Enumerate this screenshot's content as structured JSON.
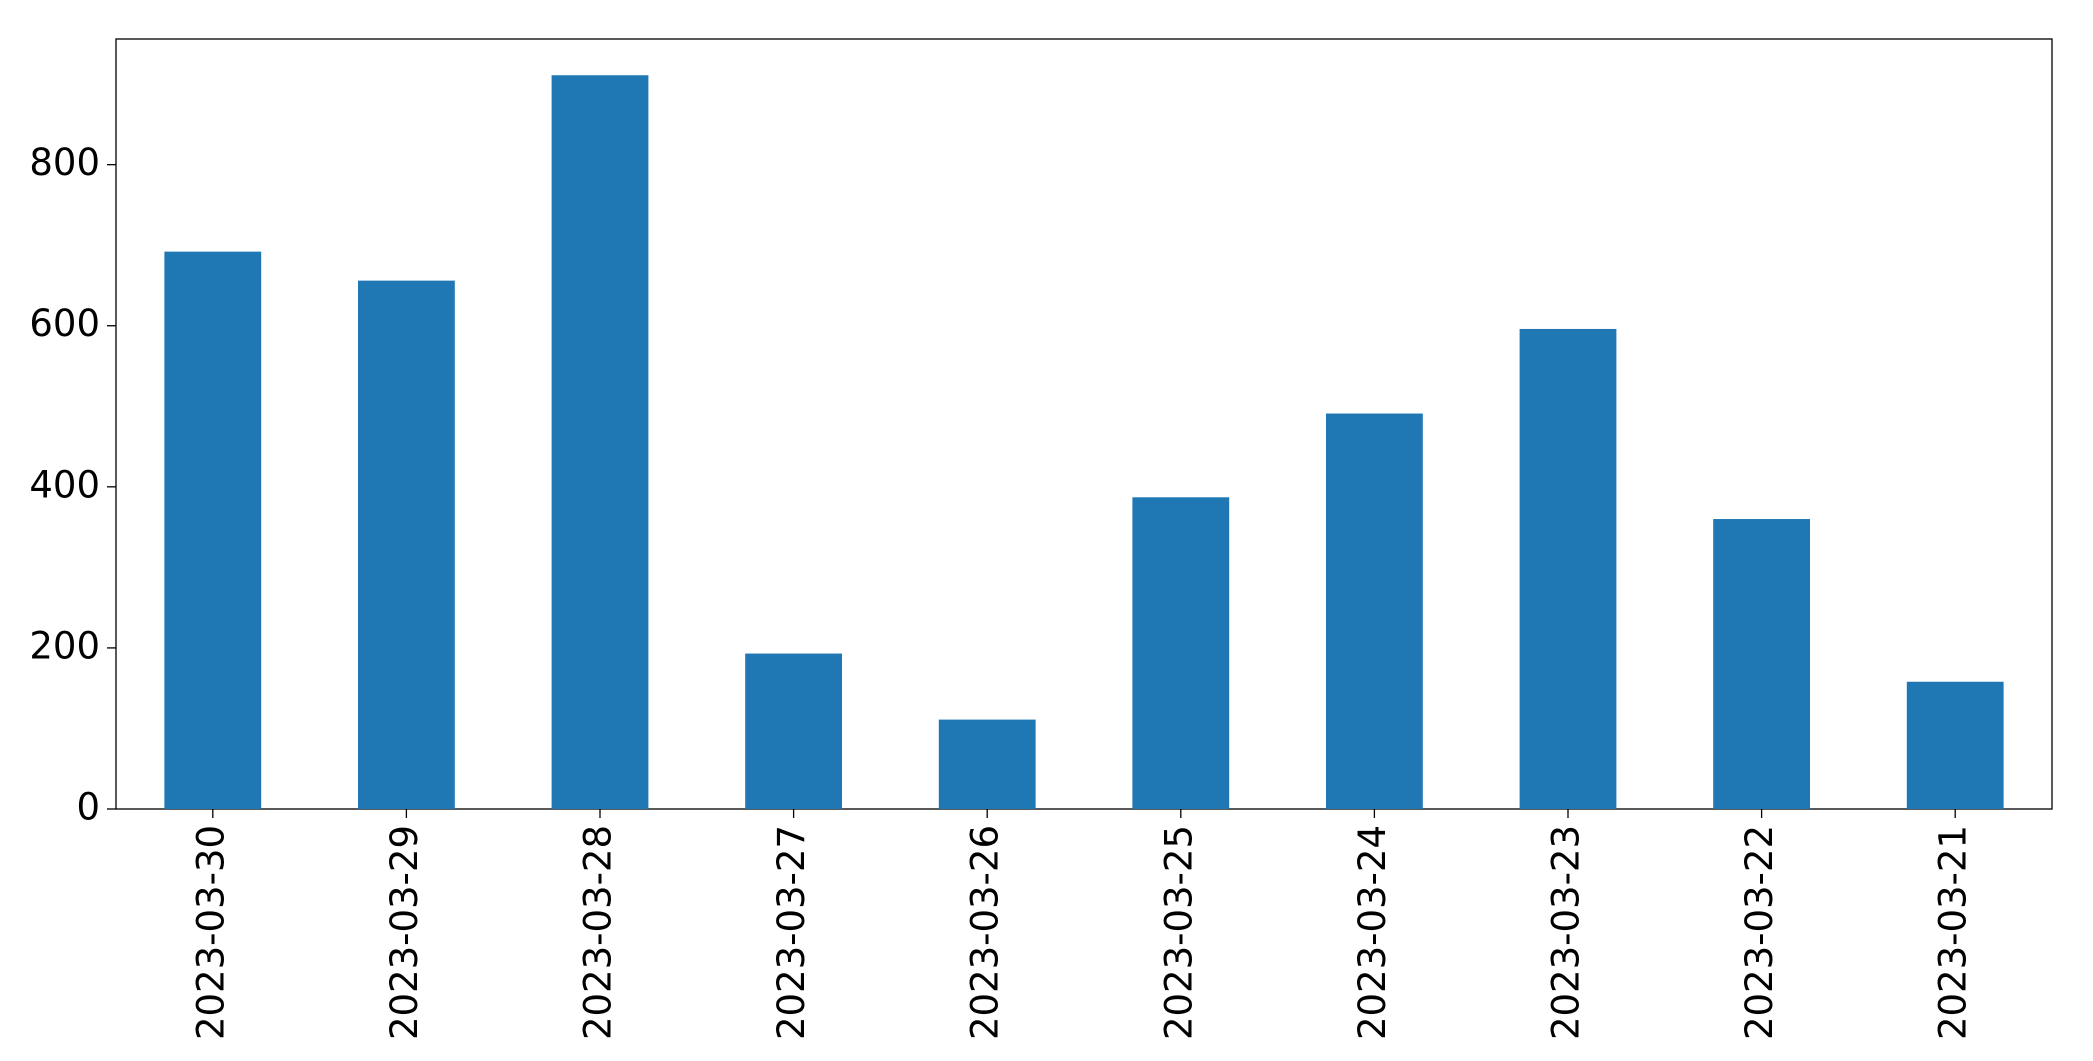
{
  "chart_data": {
    "type": "bar",
    "categories": [
      "2023-03-30",
      "2023-03-29",
      "2023-03-28",
      "2023-03-27",
      "2023-03-26",
      "2023-03-25",
      "2023-03-24",
      "2023-03-23",
      "2023-03-22",
      "2023-03-21"
    ],
    "values": [
      692,
      656,
      911,
      193,
      111,
      387,
      491,
      596,
      360,
      158
    ],
    "color": "#1f77b4",
    "ylim": [
      0,
      956
    ],
    "yticks": [
      0,
      200,
      400,
      600,
      800
    ],
    "grid": false
  }
}
